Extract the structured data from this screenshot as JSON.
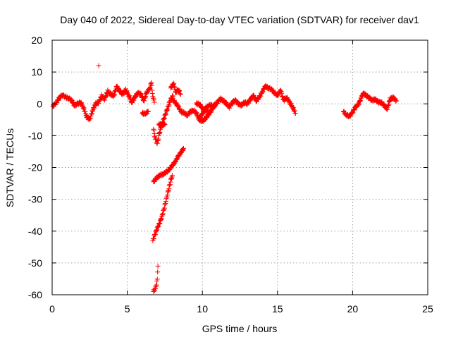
{
  "chart_data": {
    "type": "scatter",
    "title": "Day 040 of 2022, Sidereal Day-to-day VTEC variation (SDTVAR) for receiver dav1",
    "xlabel": "GPS time / hours",
    "ylabel": "SDTVAR / TECUs",
    "xlim": [
      0,
      25
    ],
    "ylim": [
      -60,
      20
    ],
    "xticks": [
      0,
      5,
      10,
      15,
      20,
      25
    ],
    "yticks": [
      -60,
      -50,
      -40,
      -30,
      -20,
      -10,
      0,
      10,
      20
    ],
    "grid": true,
    "marker": "+",
    "color": "#ff0000",
    "series": [
      {
        "name": "dav1",
        "segments": [
          [
            [
              0.05,
              -0.8
            ],
            [
              0.3,
              0.5
            ],
            [
              0.5,
              2.0
            ],
            [
              0.7,
              2.8
            ],
            [
              0.9,
              2.0
            ],
            [
              1.1,
              1.8
            ],
            [
              1.3,
              1.0
            ],
            [
              1.5,
              -0.5
            ],
            [
              1.7,
              0.0
            ],
            [
              1.9,
              0.5
            ],
            [
              2.1,
              -1.5
            ],
            [
              2.3,
              -4.0
            ],
            [
              2.5,
              -5.0
            ],
            [
              2.7,
              -2.0
            ],
            [
              2.9,
              0.0
            ],
            [
              3.1,
              0.5
            ],
            [
              3.3,
              2.5
            ],
            [
              3.5,
              1.5
            ],
            [
              3.7,
              4.0
            ],
            [
              3.9,
              3.0
            ],
            [
              4.1,
              2.5
            ],
            [
              4.3,
              5.5
            ],
            [
              4.5,
              4.0
            ],
            [
              4.7,
              3.0
            ],
            [
              4.9,
              4.5
            ],
            [
              5.1,
              2.5
            ],
            [
              5.3,
              0.5
            ],
            [
              5.5,
              2.0
            ],
            [
              5.7,
              3.5
            ],
            [
              5.9,
              3.0
            ],
            [
              6.1,
              1.0
            ],
            [
              6.3,
              3.5
            ],
            [
              6.5,
              5.0
            ],
            [
              6.6,
              6.5
            ],
            [
              6.7,
              2.5
            ],
            [
              6.8,
              0.5
            ]
          ],
          [
            [
              3.1,
              12.0
            ]
          ],
          [
            [
              6.0,
              -3.0
            ],
            [
              6.2,
              -3.0
            ],
            [
              6.4,
              -2.5
            ]
          ],
          [
            [
              6.75,
              -8.0
            ],
            [
              6.85,
              -10.5
            ],
            [
              7.0,
              -12.5
            ],
            [
              7.15,
              -9.0
            ],
            [
              7.3,
              -6.5
            ],
            [
              7.45,
              -4.5
            ],
            [
              7.6,
              -2.5
            ],
            [
              7.75,
              -0.5
            ],
            [
              7.9,
              1.5
            ],
            [
              8.05,
              2.5
            ]
          ],
          [
            [
              7.1,
              -6.5
            ],
            [
              7.3,
              -6.5
            ],
            [
              7.5,
              -6.5
            ]
          ],
          [
            [
              7.9,
              5.0
            ],
            [
              8.1,
              6.5
            ],
            [
              8.2,
              3.5
            ],
            [
              8.4,
              4.5
            ],
            [
              8.55,
              3.0
            ]
          ],
          [
            [
              8.0,
              1.5
            ],
            [
              8.2,
              0.5
            ],
            [
              8.4,
              -1.0
            ],
            [
              8.6,
              -2.5
            ],
            [
              8.8,
              -3.0
            ],
            [
              9.0,
              -3.5
            ],
            [
              9.2,
              -2.5
            ],
            [
              9.4,
              -2.0
            ],
            [
              9.6,
              -3.0
            ],
            [
              9.8,
              -5.0
            ],
            [
              10.0,
              -5.5
            ],
            [
              10.2,
              -4.5
            ],
            [
              10.4,
              -3.5
            ],
            [
              10.6,
              -2.0
            ],
            [
              10.8,
              -0.5
            ],
            [
              11.0,
              0.5
            ],
            [
              11.2,
              1.5
            ],
            [
              11.4,
              1.0
            ],
            [
              11.6,
              0.0
            ],
            [
              11.8,
              -1.0
            ],
            [
              12.0,
              0.5
            ],
            [
              12.2,
              1.0
            ],
            [
              12.4,
              0.0
            ],
            [
              12.6,
              -0.5
            ],
            [
              12.8,
              0.5
            ],
            [
              13.0,
              0.0
            ],
            [
              13.2,
              1.5
            ],
            [
              13.4,
              2.5
            ],
            [
              13.6,
              1.0
            ],
            [
              13.8,
              2.0
            ],
            [
              14.0,
              4.0
            ],
            [
              14.2,
              5.5
            ],
            [
              14.4,
              5.0
            ],
            [
              14.6,
              4.5
            ],
            [
              14.8,
              3.5
            ],
            [
              15.0,
              2.5
            ],
            [
              15.2,
              4.5
            ],
            [
              15.4,
              1.0
            ],
            [
              15.6,
              2.0
            ],
            [
              15.8,
              0.5
            ],
            [
              16.0,
              -1.0
            ],
            [
              16.2,
              -3.0
            ]
          ],
          [
            [
              9.8,
              -4.5
            ],
            [
              10.0,
              -3.0
            ],
            [
              10.2,
              -1.5
            ],
            [
              10.4,
              -0.5
            ],
            [
              10.6,
              -0.5
            ],
            [
              10.8,
              -1.0
            ]
          ],
          [
            [
              9.6,
              0.0
            ],
            [
              9.8,
              0.0
            ],
            [
              10.0,
              -1.5
            ],
            [
              10.2,
              -2.0
            ],
            [
              10.4,
              -2.5
            ]
          ],
          [
            [
              6.75,
              -24.5
            ],
            [
              7.0,
              -23.0
            ],
            [
              7.2,
              -22.5
            ],
            [
              7.4,
              -22.0
            ],
            [
              7.6,
              -21.5
            ],
            [
              7.8,
              -20.5
            ],
            [
              8.0,
              -19.5
            ],
            [
              8.2,
              -18.0
            ],
            [
              8.4,
              -16.5
            ],
            [
              8.6,
              -15.0
            ],
            [
              8.75,
              -14.0
            ]
          ],
          [
            [
              6.7,
              -43.0
            ],
            [
              6.85,
              -41.0
            ],
            [
              7.0,
              -39.0
            ],
            [
              7.15,
              -37.5
            ],
            [
              7.3,
              -35.5
            ],
            [
              7.45,
              -33.0
            ],
            [
              7.6,
              -30.0
            ],
            [
              7.75,
              -27.0
            ],
            [
              7.9,
              -24.0
            ],
            [
              8.0,
              -22.5
            ]
          ],
          [
            [
              6.75,
              -59.0
            ],
            [
              6.85,
              -58.0
            ],
            [
              6.95,
              -57.0
            ],
            [
              7.0,
              -55.0
            ],
            [
              7.02,
              -53.0
            ],
            [
              7.04,
              -51.0
            ]
          ],
          [
            [
              19.4,
              -2.5
            ],
            [
              19.6,
              -3.5
            ],
            [
              19.8,
              -4.0
            ],
            [
              20.0,
              -2.5
            ],
            [
              20.2,
              -1.0
            ],
            [
              20.4,
              0.0
            ],
            [
              20.6,
              2.0
            ],
            [
              20.7,
              3.5
            ],
            [
              20.9,
              2.5
            ],
            [
              21.1,
              2.0
            ],
            [
              21.3,
              1.0
            ],
            [
              21.5,
              1.5
            ],
            [
              21.7,
              0.5
            ],
            [
              21.9,
              0.5
            ],
            [
              22.1,
              -0.5
            ],
            [
              22.3,
              -1.5
            ],
            [
              22.5,
              1.5
            ],
            [
              22.7,
              2.0
            ],
            [
              22.9,
              1.0
            ]
          ]
        ]
      }
    ]
  }
}
